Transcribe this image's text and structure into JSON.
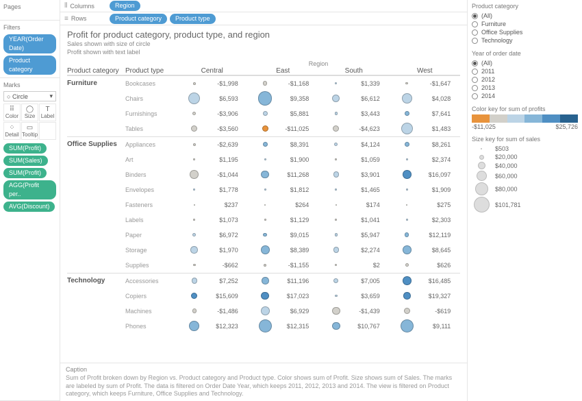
{
  "panels": {
    "pages": "Pages",
    "filters": "Filters",
    "marks": "Marks"
  },
  "filters_pills": [
    "YEAR(Order Date)",
    "Product category"
  ],
  "marks_shape_label": "Circle",
  "marks_cards": [
    {
      "icon": "⠿",
      "label": "Color"
    },
    {
      "icon": "◯",
      "label": "Size"
    },
    {
      "icon": "T",
      "label": "Label"
    },
    {
      "icon": "⁘",
      "label": "Detail"
    },
    {
      "icon": "▭",
      "label": "Tooltip"
    },
    {
      "icon": "",
      "label": ""
    }
  ],
  "marks_pills": [
    "SUM(Profit)",
    "SUM(Sales)",
    "SUM(Profit)",
    "AGG(Profit per..",
    "AVG(Discount)"
  ],
  "shelves": {
    "columns_label": "Columns",
    "rows_label": "Rows",
    "columns_pills": [
      "Region"
    ],
    "rows_pills": [
      "Product category",
      "Product type"
    ]
  },
  "viz": {
    "title": "Profit for product category, product type, and region",
    "sub1": "Sales shown with size of circle",
    "sub2": "Profit shown with text label",
    "region_header": "Region",
    "col_category": "Product category",
    "col_type": "Product type",
    "regions": [
      "Central",
      "East",
      "South",
      "West"
    ],
    "color_scale": {
      "min": -11025,
      "max": 25726,
      "colors": [
        "#e8933c",
        "#d2d0ca",
        "#bcd4e6",
        "#86b6d8",
        "#4f8fc3",
        "#28628f"
      ]
    },
    "size_scale": {
      "min": 503,
      "max": 101781
    },
    "groups": [
      {
        "category": "Furniture",
        "rows": [
          {
            "type": "Bookcases",
            "cells": [
              {
                "v": -1998,
                "s": 9000
              },
              {
                "v": -1168,
                "s": 20000
              },
              {
                "v": 1339,
                "s": 7000
              },
              {
                "v": -1647,
                "s": 8000
              }
            ]
          },
          {
            "type": "Chairs",
            "cells": [
              {
                "v": 6593,
                "s": 70000
              },
              {
                "v": 9358,
                "s": 85000
              },
              {
                "v": 6612,
                "s": 42000
              },
              {
                "v": 4028,
                "s": 60000
              }
            ]
          },
          {
            "type": "Furnishings",
            "cells": [
              {
                "v": -3906,
                "s": 15000
              },
              {
                "v": 5881,
                "s": 25000
              },
              {
                "v": 3443,
                "s": 12000
              },
              {
                "v": 7641,
                "s": 25000
              }
            ]
          },
          {
            "type": "Tables",
            "cells": [
              {
                "v": -3560,
                "s": 35000
              },
              {
                "v": -11025,
                "s": 35000
              },
              {
                "v": -4623,
                "s": 35000
              },
              {
                "v": 1483,
                "s": 70000
              }
            ]
          }
        ]
      },
      {
        "category": "Office Supplies",
        "rows": [
          {
            "type": "Appliances",
            "cells": [
              {
                "v": -2639,
                "s": 10000
              },
              {
                "v": 8391,
                "s": 25000
              },
              {
                "v": 4124,
                "s": 15000
              },
              {
                "v": 8261,
                "s": 25000
              }
            ]
          },
          {
            "type": "Art",
            "cells": [
              {
                "v": 1195,
                "s": 4000
              },
              {
                "v": 1900,
                "s": 5000
              },
              {
                "v": 1059,
                "s": 3000
              },
              {
                "v": 2374,
                "s": 5000
              }
            ]
          },
          {
            "type": "Binders",
            "cells": [
              {
                "v": -1044,
                "s": 50000
              },
              {
                "v": 11268,
                "s": 45000
              },
              {
                "v": 3901,
                "s": 30000
              },
              {
                "v": 16097,
                "s": 50000
              }
            ]
          },
          {
            "type": "Envelopes",
            "cells": [
              {
                "v": 1778,
                "s": 4000
              },
              {
                "v": 1812,
                "s": 4000
              },
              {
                "v": 1465,
                "s": 3000
              },
              {
                "v": 1909,
                "s": 4000
              }
            ]
          },
          {
            "type": "Fasteners",
            "cells": [
              {
                "v": 237,
                "s": 600
              },
              {
                "v": 264,
                "s": 600
              },
              {
                "v": 174,
                "s": 503
              },
              {
                "v": 275,
                "s": 600
              }
            ]
          },
          {
            "type": "Labels",
            "cells": [
              {
                "v": 1073,
                "s": 3000
              },
              {
                "v": 1129,
                "s": 3000
              },
              {
                "v": 1041,
                "s": 3000
              },
              {
                "v": 2303,
                "s": 4000
              }
            ]
          },
          {
            "type": "Paper",
            "cells": [
              {
                "v": 6972,
                "s": 15000
              },
              {
                "v": 9015,
                "s": 18000
              },
              {
                "v": 5947,
                "s": 12000
              },
              {
                "v": 12119,
                "s": 20000
              }
            ]
          },
          {
            "type": "Storage",
            "cells": [
              {
                "v": 1970,
                "s": 40000
              },
              {
                "v": 8389,
                "s": 50000
              },
              {
                "v": 2274,
                "s": 30000
              },
              {
                "v": 8645,
                "s": 50000
              }
            ]
          },
          {
            "type": "Supplies",
            "cells": [
              {
                "v": -662,
                "s": 8000
              },
              {
                "v": -1155,
                "s": 10000
              },
              {
                "v": 2,
                "s": 6000
              },
              {
                "v": 626,
                "s": 15000
              }
            ]
          }
        ]
      },
      {
        "category": "Technology",
        "rows": [
          {
            "type": "Accessories",
            "cells": [
              {
                "v": 7252,
                "s": 30000
              },
              {
                "v": 11196,
                "s": 40000
              },
              {
                "v": 7005,
                "s": 25000
              },
              {
                "v": 16485,
                "s": 50000
              }
            ]
          },
          {
            "type": "Copiers",
            "cells": [
              {
                "v": 15609,
                "s": 35000
              },
              {
                "v": 17023,
                "s": 45000
              },
              {
                "v": 3659,
                "s": 8000
              },
              {
                "v": 19327,
                "s": 40000
              }
            ]
          },
          {
            "type": "Machines",
            "cells": [
              {
                "v": -1486,
                "s": 20000
              },
              {
                "v": 6929,
                "s": 50000
              },
              {
                "v": -1439,
                "s": 45000
              },
              {
                "v": -619,
                "s": 35000
              }
            ]
          },
          {
            "type": "Phones",
            "cells": [
              {
                "v": 12323,
                "s": 60000
              },
              {
                "v": 12315,
                "s": 80000
              },
              {
                "v": 10767,
                "s": 45000
              },
              {
                "v": 9111,
                "s": 80000
              }
            ]
          }
        ]
      }
    ]
  },
  "right": {
    "category_title": "Product category",
    "category_opts": [
      "(All)",
      "Furniture",
      "Office Supplies",
      "Technology"
    ],
    "category_sel": "(All)",
    "year_title": "Year of order date",
    "year_opts": [
      "(All)",
      "2011",
      "2012",
      "2013",
      "2014"
    ],
    "year_sel": "(All)",
    "color_title": "Color key for sum of profits",
    "color_min": "-$11,025",
    "color_max": "$25,726",
    "size_title": "Size key for sum of sales",
    "size_rows": [
      {
        "label": "$503",
        "d": 2
      },
      {
        "label": "$20,000",
        "d": 7
      },
      {
        "label": "$40,000",
        "d": 11
      },
      {
        "label": "$60,000",
        "d": 15
      },
      {
        "label": "$80,000",
        "d": 19
      },
      {
        "label": "$101,781",
        "d": 23
      }
    ]
  },
  "caption": {
    "title": "Caption",
    "body": "Sum of Profit broken down by Region vs. Product category and Product type.  Color shows sum of Profit.  Size shows sum of Sales.  The marks are labeled by sum of Profit. The data is filtered on Order Date Year, which keeps 2011, 2012, 2013 and 2014. The view is filtered on Product category, which keeps Furniture, Office Supplies and Technology."
  }
}
